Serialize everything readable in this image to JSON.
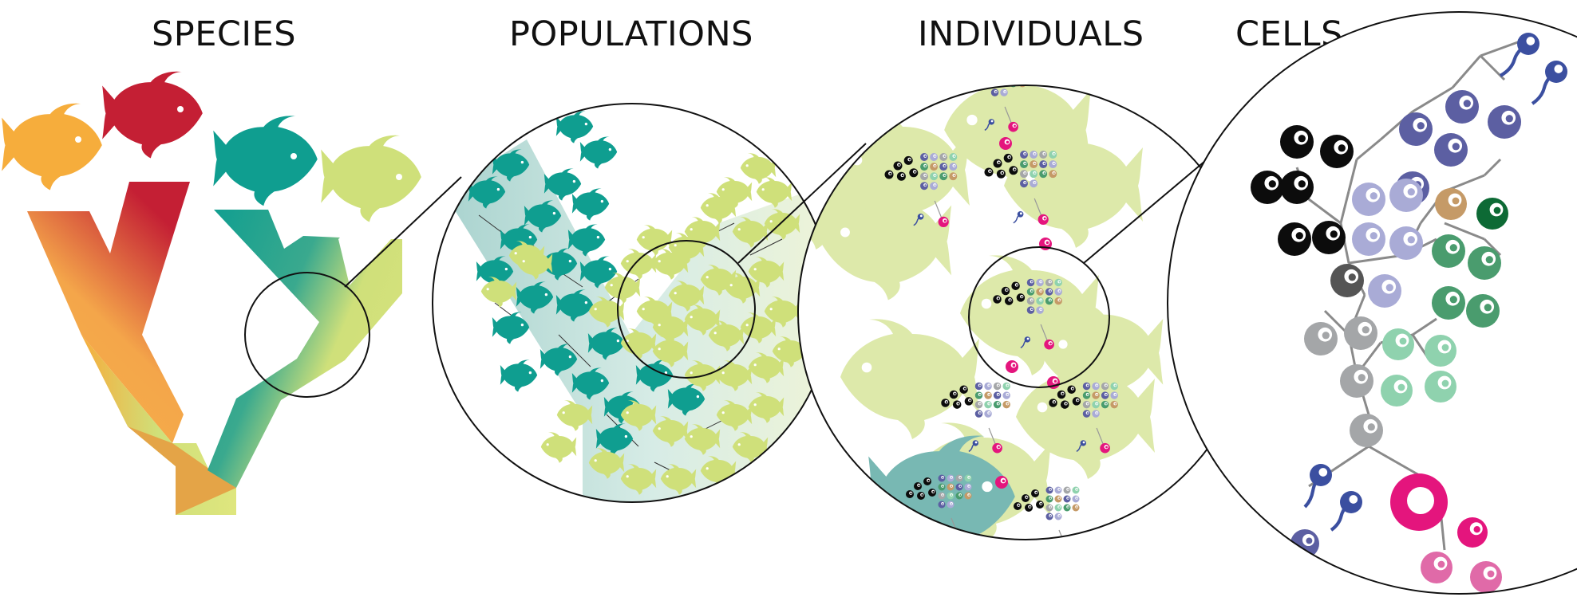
{
  "labels": {
    "species": "SPECIES",
    "populations": "POPULATIONS",
    "individuals": "INDIVIDUALS",
    "cells": "CELLS"
  },
  "colors": {
    "orange": "#f6ad3c",
    "red": "#c41f34",
    "teal": "#0f9e90",
    "lime": "#cfe07a",
    "pale_lime": "#dde9aa",
    "black_cell": "#0c0c0c",
    "dark_grey_cell": "#555555",
    "grey_cell": "#a4a6a8",
    "navy_cell": "#5c5fa2",
    "lavender_cell": "#a9abd6",
    "mint_cell": "#8fd2ae",
    "green_cell": "#4a9c6e",
    "dark_green_cell": "#0d6a35",
    "tan_cell": "#c59a67",
    "magenta_cell": "#e4157d",
    "pink_cell": "#e06aa8",
    "sperm_blue": "#3b4fa0"
  },
  "icons": [
    "fish-icon",
    "cell-icon",
    "sperm-icon",
    "zoom-lens"
  ]
}
